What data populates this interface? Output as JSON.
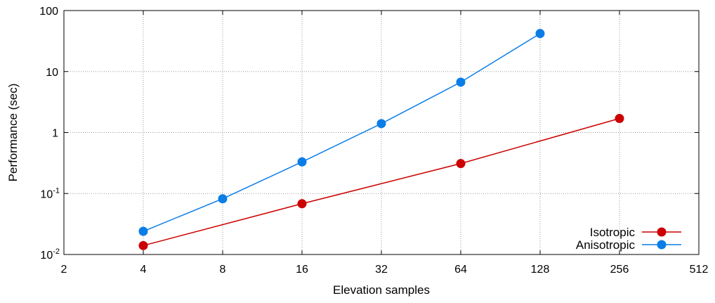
{
  "chart_data": {
    "type": "line",
    "xscale": "log2",
    "yscale": "log10",
    "x_ticks": [
      2,
      4,
      8,
      16,
      32,
      64,
      128,
      256,
      512
    ],
    "x_tick_labels": [
      "2",
      "4",
      "8",
      "16",
      "32",
      "64",
      "128",
      "256",
      "512"
    ],
    "xlim": [
      2,
      512
    ],
    "ylim": [
      0.01,
      100
    ],
    "y_ticks": [
      {
        "value": 0.01,
        "base": "10",
        "exp": "-2"
      },
      {
        "value": 0.1,
        "base": "10",
        "exp": "-1"
      },
      {
        "value": 1,
        "base": "1",
        "exp": ""
      },
      {
        "value": 10,
        "base": "10",
        "exp": ""
      },
      {
        "value": 100,
        "base": "100",
        "exp": ""
      }
    ],
    "xlabel": "Elevation samples",
    "ylabel": "Performance (sec)",
    "grid": true,
    "legend_position": "bottom-right",
    "series": [
      {
        "name": "Isotropic",
        "color": "#cc0000",
        "x": [
          4,
          16,
          64,
          256
        ],
        "y": [
          0.014,
          0.068,
          0.31,
          1.7
        ]
      },
      {
        "name": "Anisotropic",
        "color": "#0a7de6",
        "x": [
          4,
          8,
          16,
          32,
          64,
          128
        ],
        "y": [
          0.024,
          0.082,
          0.33,
          1.4,
          6.7,
          42
        ]
      }
    ]
  }
}
